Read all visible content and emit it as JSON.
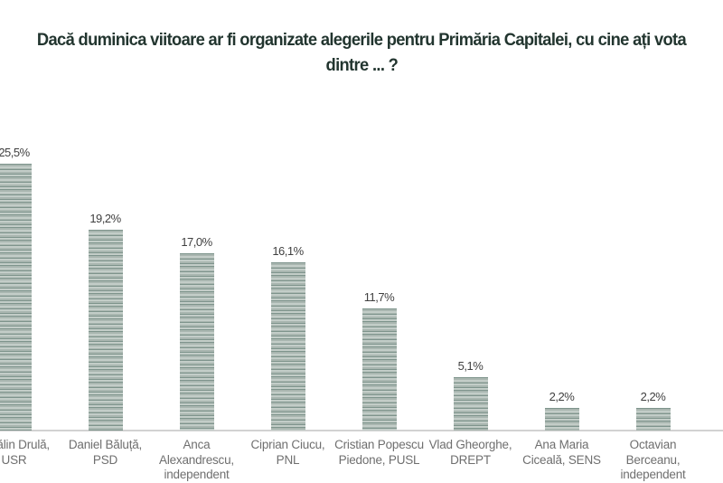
{
  "title": {
    "line1": "Dacă duminica viitoare ar fi organizate alegerile pentru Primăria Capitalei, cu cine ați vota",
    "line2": "dintre ... ?"
  },
  "colors": {
    "background": "#ffffff",
    "title_text": "#22352f",
    "value_label_text": "#3f3f3f",
    "category_label_text": "#6f6f6f",
    "axis_line": "#d2d2d2",
    "bar_base": "#a9b6b0",
    "bar_stripe_dark": "#7e948c",
    "bar_stripe_light": "#c3cdc8"
  },
  "chart_data": {
    "type": "bar",
    "title": "Dacă duminica viitoare ar fi organizate alegerile pentru Primăria Capitalei, cu cine ați vota dintre ... ?",
    "categories": [
      "Cătălin Drulă, USR",
      "Daniel Băluță, PSD",
      "Anca Alexandrescu, independent",
      "Ciprian Ciucu, PNL",
      "Cristian Popescu Piedone, PUSL",
      "Vlad Gheorghe, DREPT",
      "Ana Maria Ciceală, SENS",
      "Octavian Berceanu, independent"
    ],
    "category_line_breaks": [
      [
        "Cătălin Drulă,",
        "USR"
      ],
      [
        "Daniel Băluță,",
        "PSD"
      ],
      [
        "Anca",
        "Alexandrescu,",
        "independent"
      ],
      [
        "Ciprian Ciucu,",
        "PNL"
      ],
      [
        "Cristian Popescu",
        "Piedone, PUSL"
      ],
      [
        "Vlad Gheorghe,",
        "DREPT"
      ],
      [
        "Ana Maria",
        "Ciceală, SENS"
      ],
      [
        "Octavian",
        "Berceanu,",
        "independent"
      ]
    ],
    "values": [
      25.5,
      19.2,
      17.0,
      16.1,
      11.7,
      5.1,
      2.2,
      2.2
    ],
    "value_labels": [
      "25,5%",
      "19,2%",
      "17,0%",
      "16,1%",
      "11,7%",
      "5,1%",
      "2,2%",
      "2,2%"
    ],
    "xlabel": "",
    "ylabel": "",
    "ylim": [
      0,
      30
    ],
    "grid": false,
    "legend": false,
    "bar_texture": "horizontal-stripes",
    "decimal_separator": ","
  }
}
